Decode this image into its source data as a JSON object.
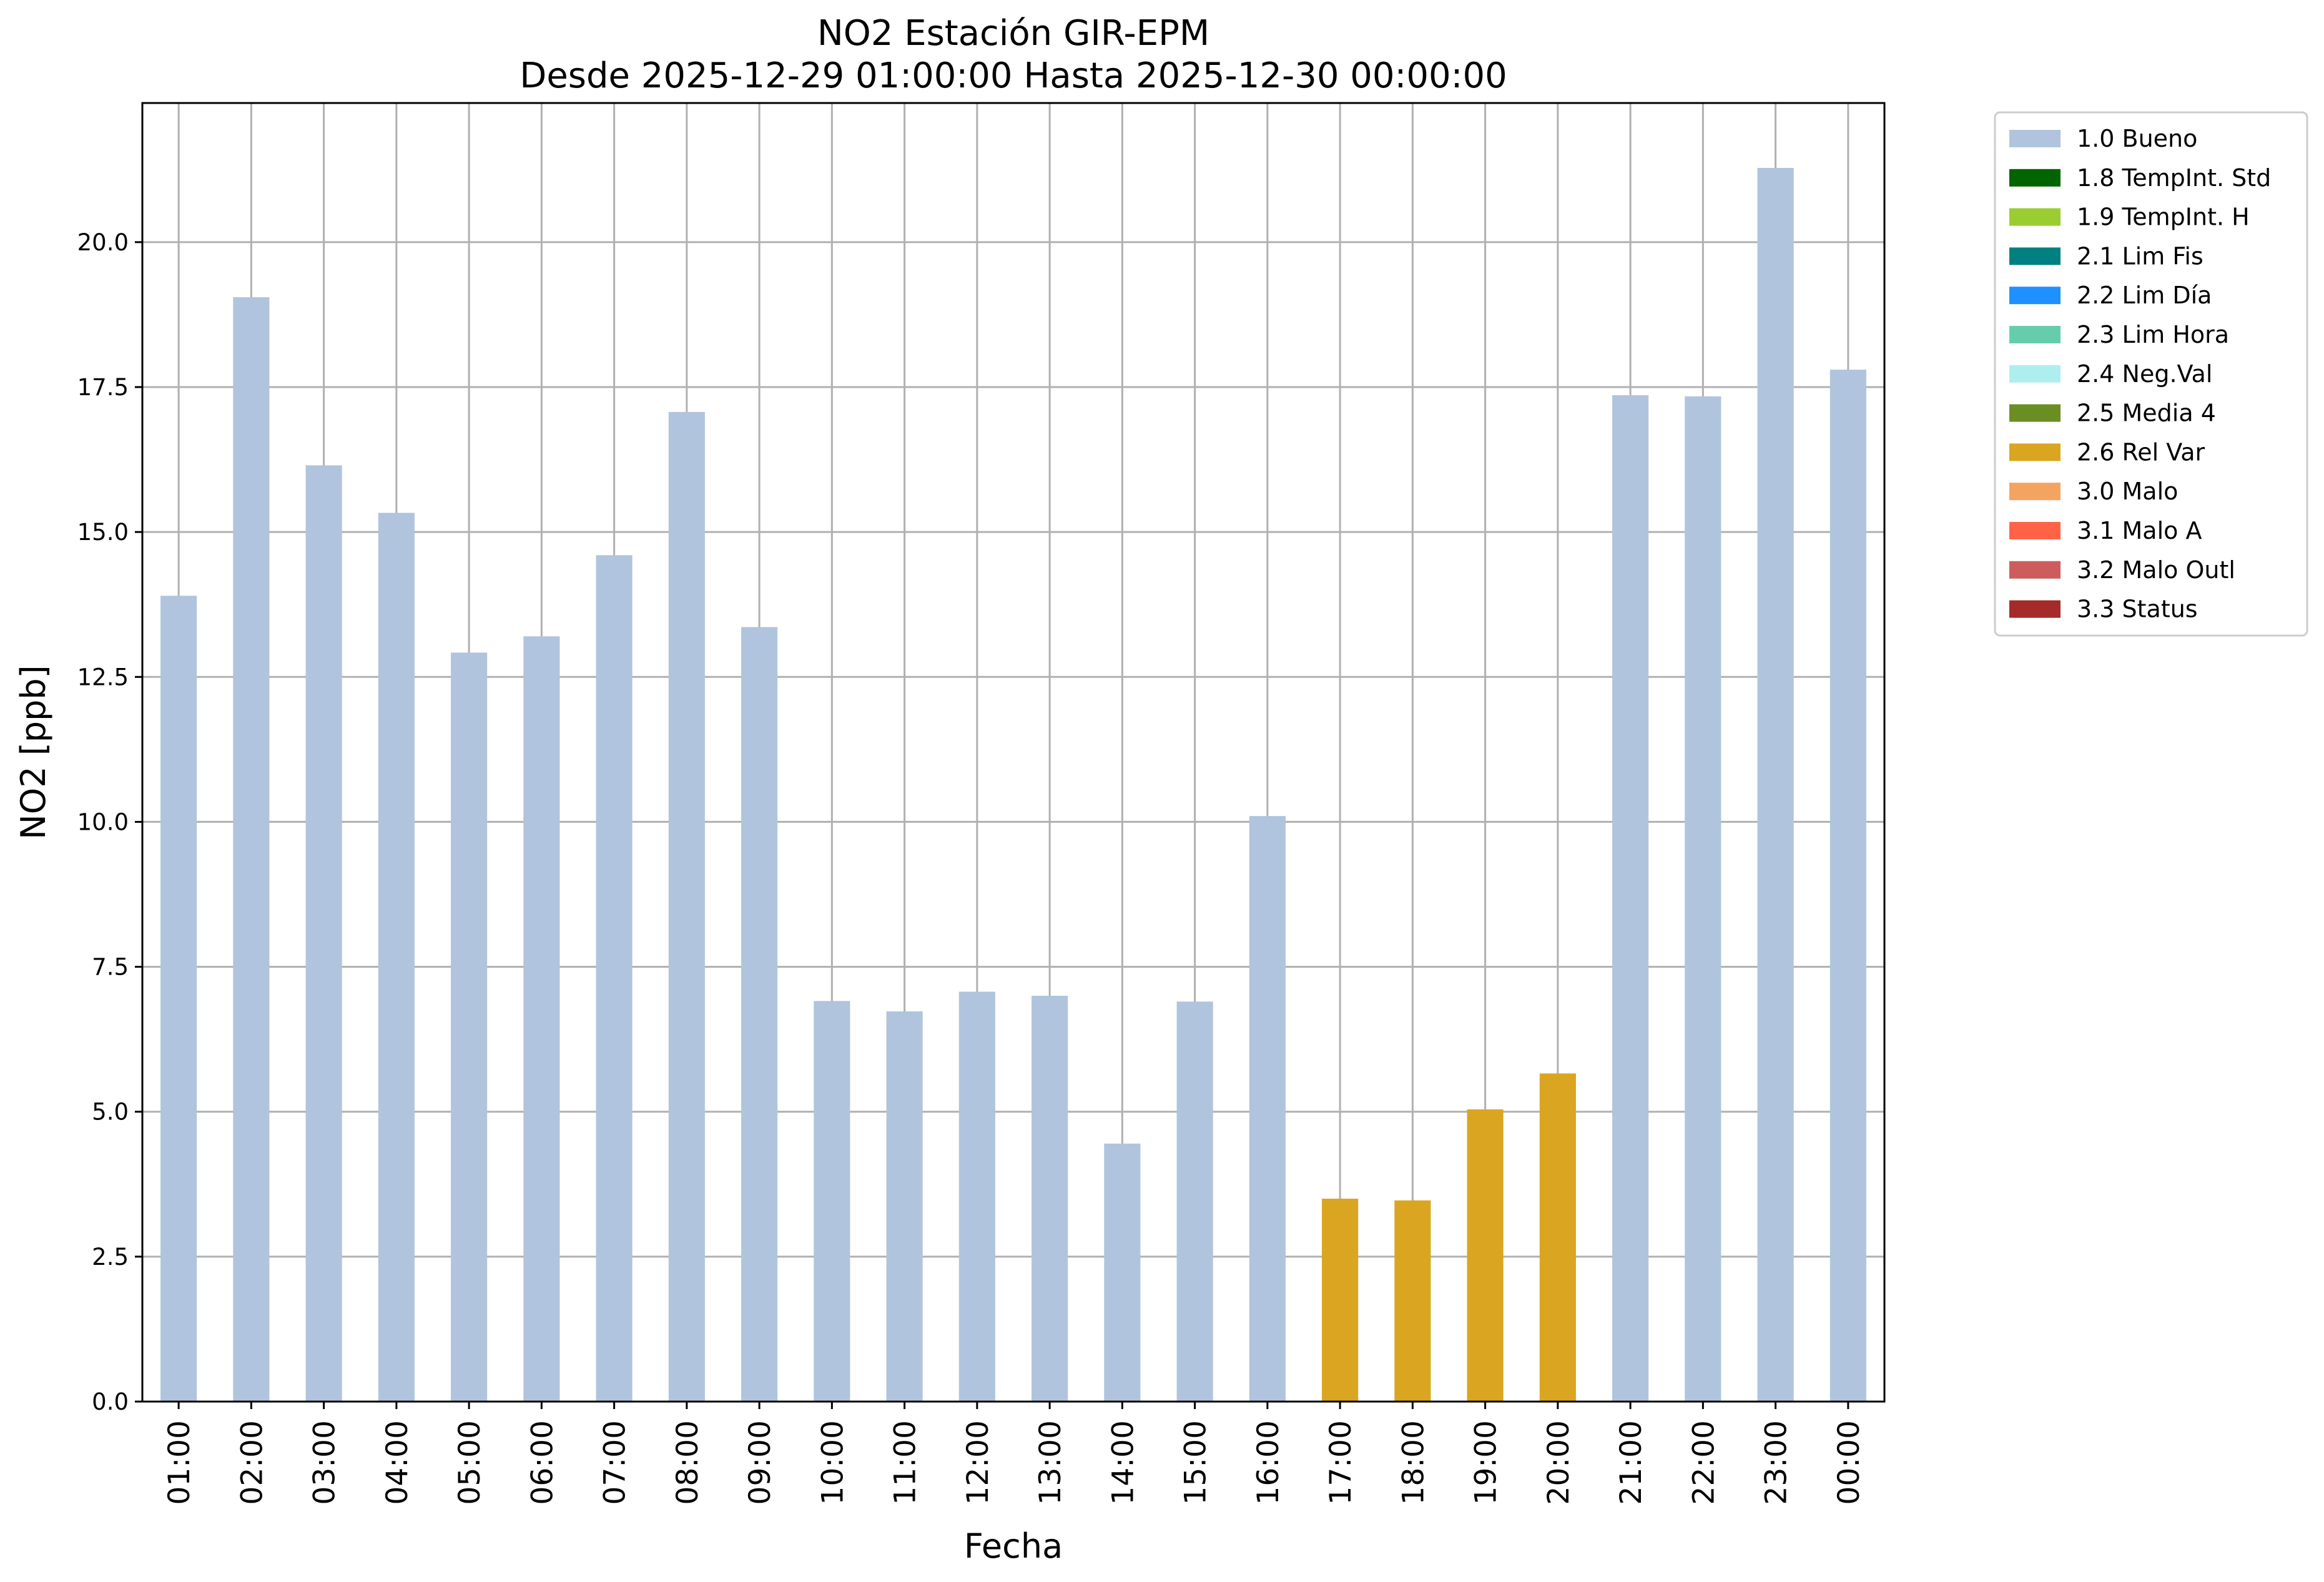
{
  "chart_data": {
    "type": "bar",
    "title": "NO2 Estación GIR-EPM",
    "subtitle": "Desde 2025-12-29 01:00:00 Hasta 2025-12-30 00:00:00",
    "xlabel": "Fecha",
    "ylabel": "NO2 [ppb]",
    "ylim": [
      0,
      22.4
    ],
    "yticks": [
      "0.0",
      "2.5",
      "5.0",
      "7.5",
      "10.0",
      "12.5",
      "15.0",
      "17.5",
      "20.0"
    ],
    "grid": true,
    "legend_position": "outside-top-right",
    "categories": [
      "01:00",
      "02:00",
      "03:00",
      "04:00",
      "05:00",
      "06:00",
      "07:00",
      "08:00",
      "09:00",
      "10:00",
      "11:00",
      "12:00",
      "13:00",
      "14:00",
      "15:00",
      "16:00",
      "17:00",
      "18:00",
      "19:00",
      "20:00",
      "21:00",
      "22:00",
      "23:00",
      "00:00"
    ],
    "values": [
      13.9,
      19.05,
      16.15,
      15.33,
      12.92,
      13.2,
      14.6,
      17.07,
      13.36,
      6.91,
      6.73,
      7.07,
      7.0,
      4.45,
      6.9,
      10.1,
      3.5,
      3.47,
      5.04,
      5.66,
      17.36,
      17.34,
      21.28,
      17.8
    ],
    "flags": [
      "1.0 Bueno",
      "1.0 Bueno",
      "1.0 Bueno",
      "1.0 Bueno",
      "1.0 Bueno",
      "1.0 Bueno",
      "1.0 Bueno",
      "1.0 Bueno",
      "1.0 Bueno",
      "1.0 Bueno",
      "1.0 Bueno",
      "1.0 Bueno",
      "1.0 Bueno",
      "1.0 Bueno",
      "1.0 Bueno",
      "1.0 Bueno",
      "2.6 Rel Var",
      "2.6 Rel Var",
      "2.6 Rel Var",
      "2.6 Rel Var",
      "1.0 Bueno",
      "1.0 Bueno",
      "1.0 Bueno",
      "1.0 Bueno"
    ],
    "legend": [
      {
        "label": "1.0 Bueno",
        "color": "#b0c4de"
      },
      {
        "label": "1.8 TempInt. Std",
        "color": "#006400"
      },
      {
        "label": "1.9 TempInt. H",
        "color": "#9acd32"
      },
      {
        "label": "2.1 Lim Fis",
        "color": "#008080"
      },
      {
        "label": "2.2 Lim Día",
        "color": "#1e90ff"
      },
      {
        "label": "2.3 Lim Hora",
        "color": "#66cdaa"
      },
      {
        "label": "2.4 Neg.Val",
        "color": "#afeeee"
      },
      {
        "label": "2.5 Media 4",
        "color": "#6b8e23"
      },
      {
        "label": "2.6 Rel Var",
        "color": "#daa520"
      },
      {
        "label": "3.0 Malo",
        "color": "#f4a460"
      },
      {
        "label": "3.1 Malo A",
        "color": "#ff6347"
      },
      {
        "label": "3.2 Malo Outl",
        "color": "#cd5c5c"
      },
      {
        "label": "3.3 Status",
        "color": "#a52a2a"
      }
    ]
  }
}
